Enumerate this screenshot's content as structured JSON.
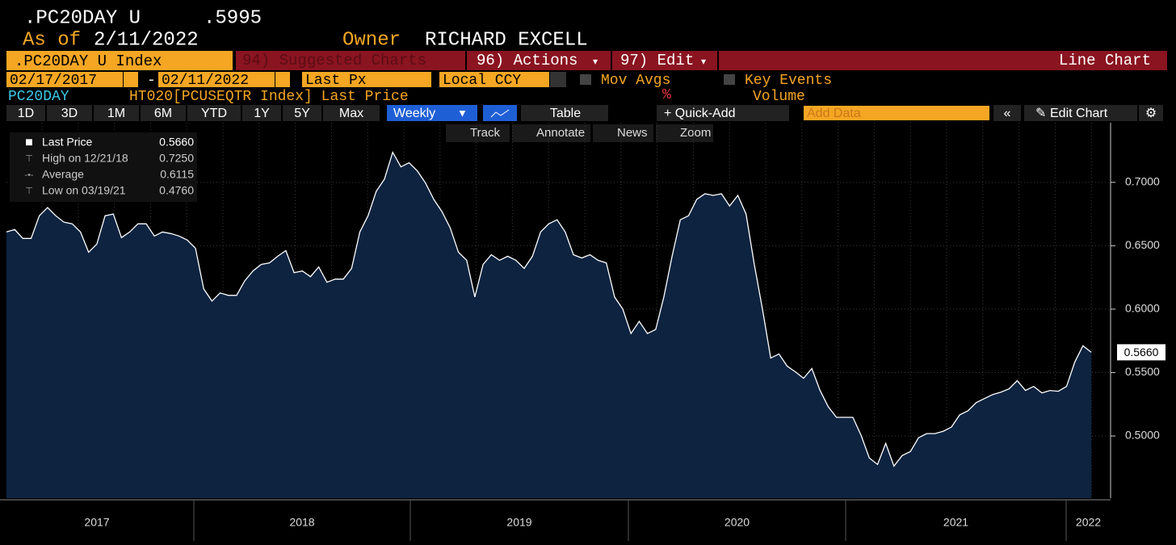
{
  "header": {
    "ticker": ".PC20DAY U",
    "price": ".5995",
    "as_of_label": "As of",
    "as_of_date": "2/11/2022",
    "owner_label": "Owner",
    "owner": "RICHARD EXCELL"
  },
  "toolbar": {
    "security": ".PC20DAY U Index",
    "suggested": "94) Suggested Charts",
    "actions": "96) Actions",
    "edit": "97) Edit",
    "chart_kind": "Line Chart"
  },
  "range": {
    "start": "02/17/2017",
    "dash": "-",
    "end": "02/11/2022",
    "field": "Last Px",
    "currency": "Local CCY",
    "mov_avgs": "Mov Avgs",
    "key_events": "Key Events"
  },
  "series_row": {
    "name": "PC20DAY",
    "desc": "HT020[PCUSEQTR Index] Last Price",
    "pct": "%",
    "volume": "Volume"
  },
  "periods": [
    "1D",
    "3D",
    "1M",
    "6M",
    "YTD",
    "1Y",
    "5Y",
    "Max"
  ],
  "controls": {
    "frequency": "Weekly",
    "table": "Table",
    "quick_add": "+ Quick-Add",
    "add_data": "Add Data",
    "edit_chart": "Edit Chart"
  },
  "tools": [
    "Track",
    "Annotate",
    "News",
    "Zoom"
  ],
  "legend": [
    {
      "label": "Last Price",
      "value": "0.5660"
    },
    {
      "label": "High on 12/21/18",
      "value": "0.7250"
    },
    {
      "label": "Average",
      "value": "0.6115"
    },
    {
      "label": "Low on 03/19/21",
      "value": "0.4760"
    }
  ],
  "chart_data": {
    "type": "area",
    "color": "#ffffff",
    "fill": "#0d2340",
    "x_labels": [
      "2017",
      "2018",
      "2019",
      "2020",
      "2021",
      "2022"
    ],
    "ylim": [
      0.451,
      0.747
    ],
    "yticks": [
      {
        "value": 0.7,
        "label": "0.7000"
      },
      {
        "value": 0.65,
        "label": "0.6500"
      },
      {
        "value": 0.6,
        "label": "0.6000"
      },
      {
        "value": 0.55,
        "label": "0.5500"
      },
      {
        "value": 0.5,
        "label": "0.5000"
      }
    ],
    "last_value_label": "0.5660",
    "grid": true,
    "values": [
      0.6609,
      0.6628,
      0.6558,
      0.6558,
      0.6737,
      0.6801,
      0.6737,
      0.6686,
      0.6673,
      0.6609,
      0.6449,
      0.6513,
      0.6737,
      0.675,
      0.6564,
      0.6609,
      0.6673,
      0.6673,
      0.6577,
      0.6609,
      0.6596,
      0.6577,
      0.6545,
      0.6481,
      0.616,
      0.6064,
      0.6128,
      0.6109,
      0.6109,
      0.6224,
      0.6301,
      0.6353,
      0.6365,
      0.6417,
      0.6462,
      0.6288,
      0.6301,
      0.6256,
      0.6333,
      0.6212,
      0.6237,
      0.6237,
      0.6321,
      0.6609,
      0.6737,
      0.6929,
      0.7026,
      0.7237,
      0.7122,
      0.7154,
      0.709,
      0.6994,
      0.6865,
      0.6769,
      0.6641,
      0.6449,
      0.6385,
      0.6096,
      0.6353,
      0.6429,
      0.6385,
      0.6417,
      0.6385,
      0.6321,
      0.6417,
      0.6609,
      0.6673,
      0.6705,
      0.6609,
      0.6429,
      0.6404,
      0.6429,
      0.6385,
      0.6365,
      0.6096,
      0.6,
      0.5808,
      0.5904,
      0.5808,
      0.584,
      0.6096,
      0.6417,
      0.6705,
      0.6737,
      0.6865,
      0.691,
      0.6897,
      0.691,
      0.6814,
      0.6897,
      0.675,
      0.6353,
      0.6,
      0.5615,
      0.5647,
      0.5551,
      0.5506,
      0.5455,
      0.5532,
      0.5359,
      0.5231,
      0.5147,
      0.5147,
      0.5147,
      0.5006,
      0.4827,
      0.4776,
      0.4942,
      0.4763,
      0.4846,
      0.4878,
      0.4987,
      0.5019,
      0.5019,
      0.5038,
      0.5071,
      0.5167,
      0.5199,
      0.5263,
      0.5295,
      0.5327,
      0.5346,
      0.5372,
      0.5436,
      0.5359,
      0.5391,
      0.534,
      0.5359,
      0.5353,
      0.5391,
      0.5583,
      0.5712,
      0.566
    ]
  }
}
